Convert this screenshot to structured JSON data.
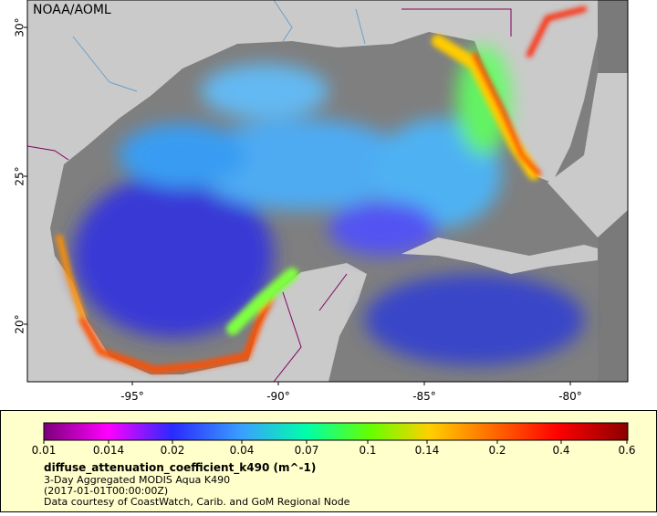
{
  "map": {
    "label": "NOAA/AOML",
    "lat_ticks": [
      "30°",
      "25°",
      "20°"
    ],
    "lon_ticks": [
      "-95°",
      "-90°",
      "-85°",
      "-80°"
    ]
  },
  "legend": {
    "ticks": [
      "0.01",
      "0.014",
      "0.02",
      "0.04",
      "0.07",
      "0.1",
      "0.14",
      "0.2",
      "0.4",
      "0.6"
    ],
    "title": "diffuse_attenuation_coefficient_k490 (m^-1)",
    "lines": [
      "3-Day Aggregated MODIS Aqua K490",
      "(2017-01-01T00:00:00Z)",
      "Data courtesy of CoastWatch, Carib. and GoM Regional Node"
    ]
  }
}
